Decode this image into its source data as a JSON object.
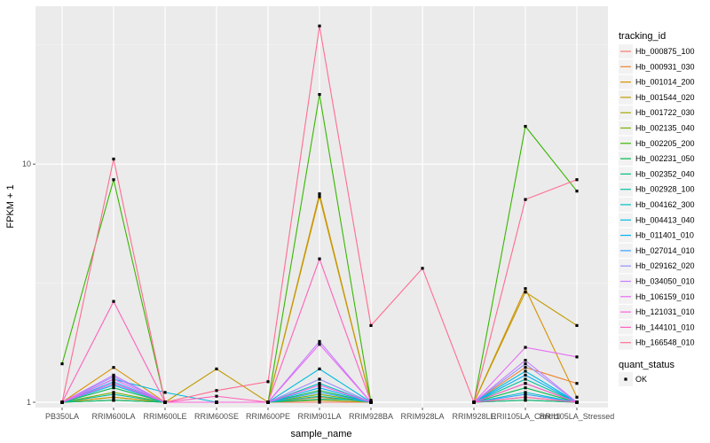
{
  "chart_data": {
    "type": "line",
    "xlabel": "sample_name",
    "ylabel": "FPKM + 1",
    "y_scale": "log",
    "ylim": [
      0.95,
      46
    ],
    "y_ticks": [
      1,
      10
    ],
    "grid": true,
    "legend_position": "right",
    "categories": [
      "PB350LA",
      "RRIM600LA",
      "RRIM600LE",
      "RRIM600SE",
      "RRIM600PE",
      "RRIM901LA",
      "RRIM928BA",
      "RRIM928LA",
      "RRIM928LE",
      "RRII105LA_Control",
      "RRII105LA_Stressed"
    ],
    "color_legend": {
      "title": "tracking_id",
      "entries": [
        "Hb_000875_100",
        "Hb_000931_030",
        "Hb_001014_200",
        "Hb_001544_020",
        "Hb_001722_030",
        "Hb_002135_040",
        "Hb_002205_200",
        "Hb_002231_050",
        "Hb_002352_040",
        "Hb_002928_100",
        "Hb_004162_300",
        "Hb_004413_040",
        "Hb_011401_010",
        "Hb_027014_010",
        "Hb_029162_020",
        "Hb_034050_010",
        "Hb_106159_010",
        "Hb_121031_010",
        "Hb_144101_010",
        "Hb_166548_010"
      ]
    },
    "shape_legend": {
      "title": "quant_status",
      "entries": [
        "OK"
      ]
    },
    "series": [
      {
        "name": "Hb_000875_100",
        "color": "#F8766D",
        "values": [
          1.0,
          1.02,
          1.0,
          1.0,
          1.0,
          1.0,
          1.0,
          null,
          1.0,
          1.02,
          1.0
        ]
      },
      {
        "name": "Hb_000931_030",
        "color": "#EA8331",
        "values": [
          1.0,
          1.05,
          1.0,
          1.0,
          1.0,
          1.05,
          1.0,
          null,
          1.0,
          1.4,
          1.2
        ]
      },
      {
        "name": "Hb_001014_200",
        "color": "#D89000",
        "values": [
          1.0,
          1.4,
          1.0,
          1.0,
          1.0,
          7.5,
          1.0,
          null,
          1.0,
          3.0,
          1.05
        ]
      },
      {
        "name": "Hb_001544_020",
        "color": "#C09B00",
        "values": [
          1.0,
          1.05,
          1.0,
          1.38,
          1.0,
          7.3,
          1.0,
          null,
          1.0,
          2.9,
          2.1
        ]
      },
      {
        "name": "Hb_001722_030",
        "color": "#A3A500",
        "values": [
          1.0,
          1.02,
          1.0,
          1.0,
          1.0,
          1.02,
          1.0,
          null,
          1.0,
          1.05,
          1.0
        ]
      },
      {
        "name": "Hb_002135_040",
        "color": "#7CAE00",
        "values": [
          1.0,
          1.1,
          1.0,
          1.0,
          1.0,
          1.08,
          1.0,
          null,
          1.0,
          1.2,
          1.0
        ]
      },
      {
        "name": "Hb_002205_200",
        "color": "#39B600",
        "values": [
          1.45,
          8.6,
          1.0,
          1.0,
          1.0,
          19.6,
          1.0,
          null,
          1.0,
          14.4,
          7.7
        ]
      },
      {
        "name": "Hb_002231_050",
        "color": "#00BB4E",
        "values": [
          1.0,
          1.15,
          1.0,
          1.0,
          1.0,
          1.12,
          1.0,
          null,
          1.0,
          1.15,
          1.0
        ]
      },
      {
        "name": "Hb_002352_040",
        "color": "#00BF7D",
        "values": [
          1.0,
          1.02,
          1.0,
          1.0,
          1.0,
          1.03,
          1.02,
          null,
          1.0,
          1.02,
          1.0
        ]
      },
      {
        "name": "Hb_002928_100",
        "color": "#00C1A3",
        "values": [
          1.0,
          1.08,
          1.0,
          1.0,
          1.0,
          1.06,
          1.0,
          null,
          1.0,
          1.25,
          1.0
        ]
      },
      {
        "name": "Hb_004162_300",
        "color": "#00BFC4",
        "values": [
          1.0,
          1.2,
          1.0,
          1.0,
          1.0,
          1.2,
          1.0,
          null,
          1.0,
          1.1,
          1.0
        ]
      },
      {
        "name": "Hb_004413_040",
        "color": "#00BAE0",
        "values": [
          1.0,
          1.25,
          1.1,
          1.0,
          1.0,
          1.38,
          1.0,
          null,
          1.0,
          1.35,
          1.0
        ]
      },
      {
        "name": "Hb_011401_010",
        "color": "#00B0F6",
        "values": [
          1.0,
          1.18,
          1.0,
          1.0,
          1.0,
          1.15,
          1.0,
          null,
          1.0,
          1.3,
          1.0
        ]
      },
      {
        "name": "Hb_027014_010",
        "color": "#35A2FF",
        "values": [
          1.0,
          1.22,
          1.0,
          1.0,
          1.0,
          1.1,
          1.0,
          null,
          1.0,
          1.08,
          1.0
        ]
      },
      {
        "name": "Hb_029162_020",
        "color": "#9590FF",
        "values": [
          1.0,
          1.28,
          1.0,
          1.0,
          1.0,
          1.25,
          1.0,
          null,
          1.0,
          1.45,
          1.0
        ]
      },
      {
        "name": "Hb_034050_010",
        "color": "#C77CFF",
        "values": [
          1.0,
          1.3,
          1.0,
          1.0,
          1.0,
          1.8,
          1.0,
          null,
          1.0,
          1.5,
          1.0
        ]
      },
      {
        "name": "Hb_106159_010",
        "color": "#E76BF3",
        "values": [
          1.0,
          1.25,
          1.0,
          1.0,
          1.0,
          1.75,
          1.0,
          null,
          1.0,
          1.7,
          1.55
        ]
      },
      {
        "name": "Hb_121031_010",
        "color": "#FA62DB",
        "values": [
          1.0,
          1.2,
          1.0,
          1.0,
          1.0,
          1.18,
          1.0,
          null,
          1.0,
          1.2,
          1.0
        ]
      },
      {
        "name": "Hb_144101_010",
        "color": "#FF62BC",
        "values": [
          1.0,
          2.65,
          1.0,
          1.06,
          1.0,
          4.0,
          1.0,
          null,
          1.0,
          1.05,
          1.0
        ]
      },
      {
        "name": "Hb_166548_010",
        "color": "#FF6C91",
        "values": [
          1.0,
          10.5,
          1.0,
          1.12,
          1.22,
          38.0,
          2.1,
          3.65,
          1.0,
          7.1,
          8.6
        ]
      }
    ]
  }
}
